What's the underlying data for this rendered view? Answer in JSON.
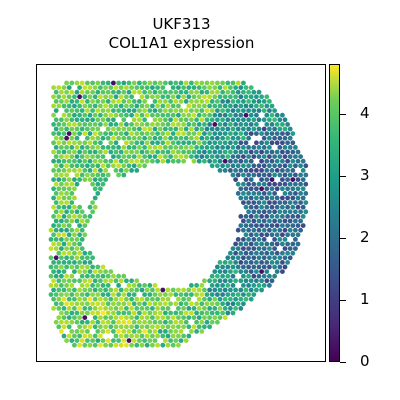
{
  "chart_data": {
    "type": "spatial-scatter",
    "title": "UKF313",
    "subtitle": "COL1A1 expression",
    "colorbar": {
      "colormap": "viridis",
      "range": [
        0,
        4.8
      ],
      "ticks": [
        0,
        1,
        2,
        3,
        4
      ],
      "tick_labels": [
        "0",
        "1",
        "2",
        "3",
        "4"
      ]
    },
    "axes_visible": false,
    "grid": false,
    "value_distribution": {
      "dominant_range": [
        2.8,
        4.4
      ],
      "low_expression_region": "right-center",
      "low_range": [
        0.3,
        2.4
      ],
      "high_expression_region": "lower-left"
    }
  }
}
